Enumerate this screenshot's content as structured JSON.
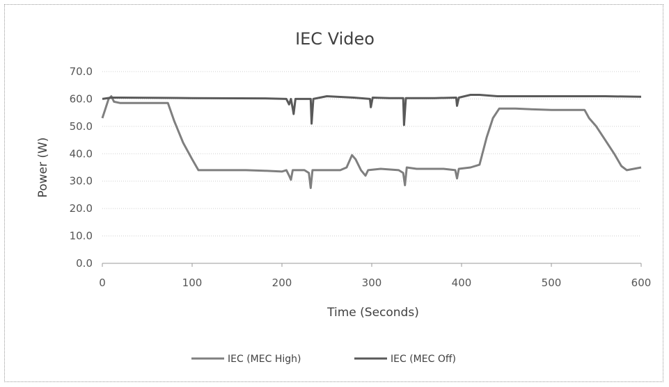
{
  "chart_data": {
    "type": "line",
    "title": "IEC Video",
    "xlabel": "Time (Seconds)",
    "ylabel": "Power (W)",
    "xlim": [
      0,
      600
    ],
    "ylim": [
      0,
      70
    ],
    "x_ticks": [
      "0",
      "100",
      "200",
      "300",
      "400",
      "500",
      "600"
    ],
    "y_ticks": [
      "0.0",
      "10.0",
      "20.0",
      "30.0",
      "40.0",
      "50.0",
      "60.0",
      "70.0"
    ],
    "grid": "horizontal dotted",
    "legend_position": "bottom",
    "series": [
      {
        "name": "IEC (MEC High)",
        "color": "#7f7f7f",
        "points": [
          [
            0,
            53
          ],
          [
            3,
            56
          ],
          [
            7,
            60
          ],
          [
            10,
            61
          ],
          [
            13,
            59
          ],
          [
            20,
            58.5
          ],
          [
            40,
            58.5
          ],
          [
            60,
            58.5
          ],
          [
            73,
            58.5
          ],
          [
            80,
            52
          ],
          [
            90,
            44
          ],
          [
            100,
            38
          ],
          [
            107,
            34
          ],
          [
            120,
            34
          ],
          [
            140,
            34
          ],
          [
            160,
            34
          ],
          [
            180,
            33.8
          ],
          [
            200,
            33.5
          ],
          [
            205,
            34
          ],
          [
            208,
            32
          ],
          [
            210,
            30.5
          ],
          [
            212,
            34
          ],
          [
            225,
            34
          ],
          [
            230,
            33
          ],
          [
            232,
            27.5
          ],
          [
            234,
            34
          ],
          [
            250,
            34
          ],
          [
            265,
            34
          ],
          [
            272,
            35
          ],
          [
            278,
            39.5
          ],
          [
            282,
            38
          ],
          [
            288,
            34
          ],
          [
            293,
            32
          ],
          [
            296,
            34
          ],
          [
            310,
            34.5
          ],
          [
            330,
            34
          ],
          [
            335,
            33
          ],
          [
            337,
            28.5
          ],
          [
            339,
            35
          ],
          [
            350,
            34.5
          ],
          [
            380,
            34.5
          ],
          [
            393,
            34
          ],
          [
            395,
            31
          ],
          [
            397,
            34.5
          ],
          [
            410,
            35
          ],
          [
            420,
            36
          ],
          [
            428,
            46
          ],
          [
            435,
            53
          ],
          [
            442,
            56.5
          ],
          [
            460,
            56.5
          ],
          [
            480,
            56.2
          ],
          [
            500,
            56
          ],
          [
            520,
            56
          ],
          [
            537,
            56
          ],
          [
            542,
            53
          ],
          [
            550,
            50
          ],
          [
            560,
            45
          ],
          [
            570,
            40
          ],
          [
            578,
            35.5
          ],
          [
            584,
            34
          ],
          [
            600,
            35
          ]
        ]
      },
      {
        "name": "IEC (MEC Off)",
        "color": "#595959",
        "points": [
          [
            0,
            60
          ],
          [
            10,
            60.5
          ],
          [
            20,
            60.5
          ],
          [
            100,
            60.3
          ],
          [
            180,
            60.2
          ],
          [
            205,
            60
          ],
          [
            208,
            58
          ],
          [
            210,
            60
          ],
          [
            212,
            56.5
          ],
          [
            213,
            54.5
          ],
          [
            215,
            60
          ],
          [
            232,
            60
          ],
          [
            233,
            51
          ],
          [
            235,
            60
          ],
          [
            250,
            61
          ],
          [
            280,
            60.5
          ],
          [
            298,
            60
          ],
          [
            299,
            57
          ],
          [
            301,
            60.5
          ],
          [
            320,
            60.3
          ],
          [
            335,
            60.3
          ],
          [
            336,
            50.5
          ],
          [
            338,
            60.3
          ],
          [
            350,
            60.3
          ],
          [
            370,
            60.3
          ],
          [
            394,
            60.5
          ],
          [
            395,
            57.5
          ],
          [
            397,
            60.5
          ],
          [
            410,
            61.5
          ],
          [
            420,
            61.5
          ],
          [
            440,
            61
          ],
          [
            500,
            61
          ],
          [
            560,
            61
          ],
          [
            600,
            60.8
          ]
        ]
      }
    ]
  }
}
